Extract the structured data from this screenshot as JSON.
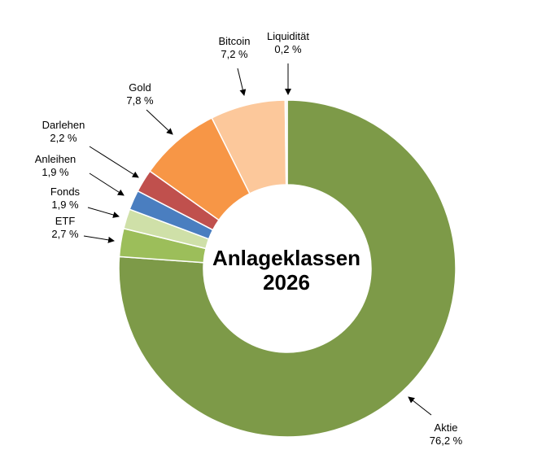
{
  "chart_data": {
    "type": "pie",
    "variant": "donut",
    "title_lines": [
      "Anlageklassen",
      "2026"
    ],
    "slices": [
      {
        "label": "Aktie",
        "value_text": "76,2 %",
        "value": 76.2,
        "color": "#7d9a48"
      },
      {
        "label": "ETF",
        "value_text": "2,7 %",
        "value": 2.7,
        "color": "#9cbe5a"
      },
      {
        "label": "Fonds",
        "value_text": "1,9 %",
        "value": 1.9,
        "color": "#cfe0a8"
      },
      {
        "label": "Anleihen",
        "value_text": "1,9 %",
        "value": 1.9,
        "color": "#4a7ec0"
      },
      {
        "label": "Darlehen",
        "value_text": "2,2 %",
        "value": 2.2,
        "color": "#c0504d"
      },
      {
        "label": "Gold",
        "value_text": "7,8 %",
        "value": 7.8,
        "color": "#f79646"
      },
      {
        "label": "Bitcoin",
        "value_text": "7,2 %",
        "value": 7.2,
        "color": "#fcc89b"
      },
      {
        "label": "Liquidität",
        "value_text": "0,2 %",
        "value": 0.2,
        "color": "#f2f2f2"
      }
    ]
  }
}
